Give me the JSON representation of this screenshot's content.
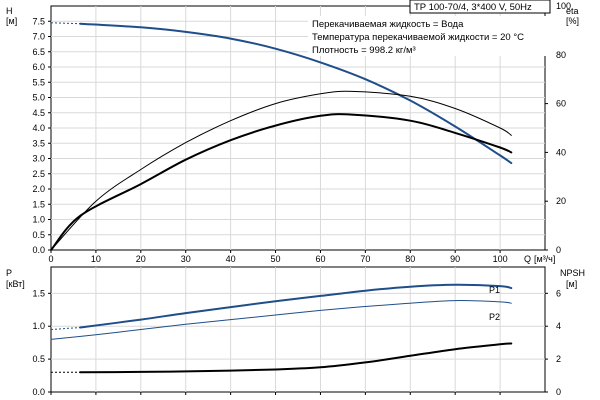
{
  "header": {
    "pump_model": "TP 100-70/4, 3*400 V, 50Hz",
    "info_lines": [
      "Перекачиваемая жидкость = Вода",
      "Температура перекачиваемой жидкости = 20 °C",
      "Плотность = 998.2 кг/м³"
    ]
  },
  "colors": {
    "blue": "#1f4e8a",
    "black": "#000000",
    "grid": "#d9d9d9"
  },
  "chart_data": [
    {
      "type": "line",
      "name": "head-efficiency",
      "x_label": "Q",
      "x_unit": "[м³/ч]",
      "y_left_label": "H",
      "y_left_unit": "[м]",
      "y_right_label": "eta",
      "y_right_unit": "[%]",
      "xlim": [
        0,
        110
      ],
      "ylim_left": [
        0,
        8
      ],
      "ylim_right": [
        0,
        100
      ],
      "x_ticks": [
        0,
        10,
        20,
        30,
        40,
        50,
        60,
        70,
        80,
        90,
        100
      ],
      "y_left_ticks": [
        "0.0",
        "0.5",
        "1.0",
        "1.5",
        "2.0",
        "2.5",
        "3.0",
        "3.5",
        "4.0",
        "4.5",
        "5.0",
        "5.5",
        "6.0",
        "6.5",
        "7.0",
        "7.5"
      ],
      "y_right_ticks": [
        "0",
        "20",
        "40",
        "60",
        "80",
        "100"
      ],
      "grid": true,
      "series": [
        {
          "axis": "left",
          "color": "#1f4e8a",
          "width": 2,
          "dashed_start": true,
          "x": [
            0,
            6.5,
            20,
            30,
            40,
            50,
            60,
            70,
            80,
            90,
            100,
            102.5
          ],
          "y": [
            7.45,
            7.42,
            7.3,
            7.15,
            6.93,
            6.6,
            6.15,
            5.6,
            4.9,
            4.05,
            3.1,
            2.85
          ]
        },
        {
          "axis": "right",
          "color": "#000000",
          "width": 1,
          "x": [
            0,
            10,
            20,
            30,
            40,
            50,
            60,
            67,
            80,
            90,
            100,
            102.5
          ],
          "y": [
            0,
            20,
            33,
            44,
            53,
            60,
            64,
            65,
            63,
            58,
            50,
            47
          ]
        },
        {
          "axis": "right",
          "color": "#000000",
          "width": 2,
          "x": [
            0,
            6.5,
            20,
            30,
            40,
            50,
            60,
            67,
            80,
            90,
            100,
            102.5
          ],
          "y": [
            0,
            14,
            27,
            37,
            45,
            51,
            55,
            55.5,
            53,
            48,
            42,
            40
          ]
        }
      ]
    },
    {
      "type": "line",
      "name": "power-npsh",
      "y_left_label": "P",
      "y_left_unit": "[кВт]",
      "y_right_label": "NPSH",
      "y_right_unit": "[м]",
      "xlim": [
        0,
        110
      ],
      "ylim_left": [
        0,
        1.9
      ],
      "ylim_right": [
        0,
        7.6
      ],
      "y_left_ticks": [
        "0.0",
        "0.5",
        "1.0",
        "1.5"
      ],
      "y_right_ticks": [
        "0",
        "2",
        "4",
        "6"
      ],
      "grid": true,
      "series": [
        {
          "name": "P1",
          "axis": "left",
          "color": "#1f4e8a",
          "width": 2,
          "dashed_start": true,
          "x": [
            0,
            6.5,
            20,
            30,
            40,
            50,
            60,
            70,
            80,
            90,
            100,
            102.5
          ],
          "y": [
            0.95,
            0.98,
            1.1,
            1.2,
            1.29,
            1.38,
            1.46,
            1.54,
            1.6,
            1.63,
            1.61,
            1.58
          ]
        },
        {
          "name": "P2",
          "axis": "left",
          "color": "#1f4e8a",
          "width": 1,
          "x": [
            0,
            10,
            20,
            30,
            40,
            50,
            60,
            70,
            80,
            90,
            100,
            102.5
          ],
          "y": [
            0.8,
            0.87,
            0.95,
            1.03,
            1.1,
            1.17,
            1.24,
            1.3,
            1.35,
            1.39,
            1.37,
            1.35
          ]
        },
        {
          "axis": "right",
          "color": "#000000",
          "width": 2,
          "dashed_start": true,
          "x": [
            0,
            6.5,
            20,
            30,
            40,
            50,
            60,
            70,
            80,
            90,
            100,
            102.5
          ],
          "y": [
            1.2,
            1.2,
            1.22,
            1.25,
            1.3,
            1.37,
            1.5,
            1.8,
            2.2,
            2.6,
            2.9,
            2.95
          ]
        }
      ]
    }
  ]
}
